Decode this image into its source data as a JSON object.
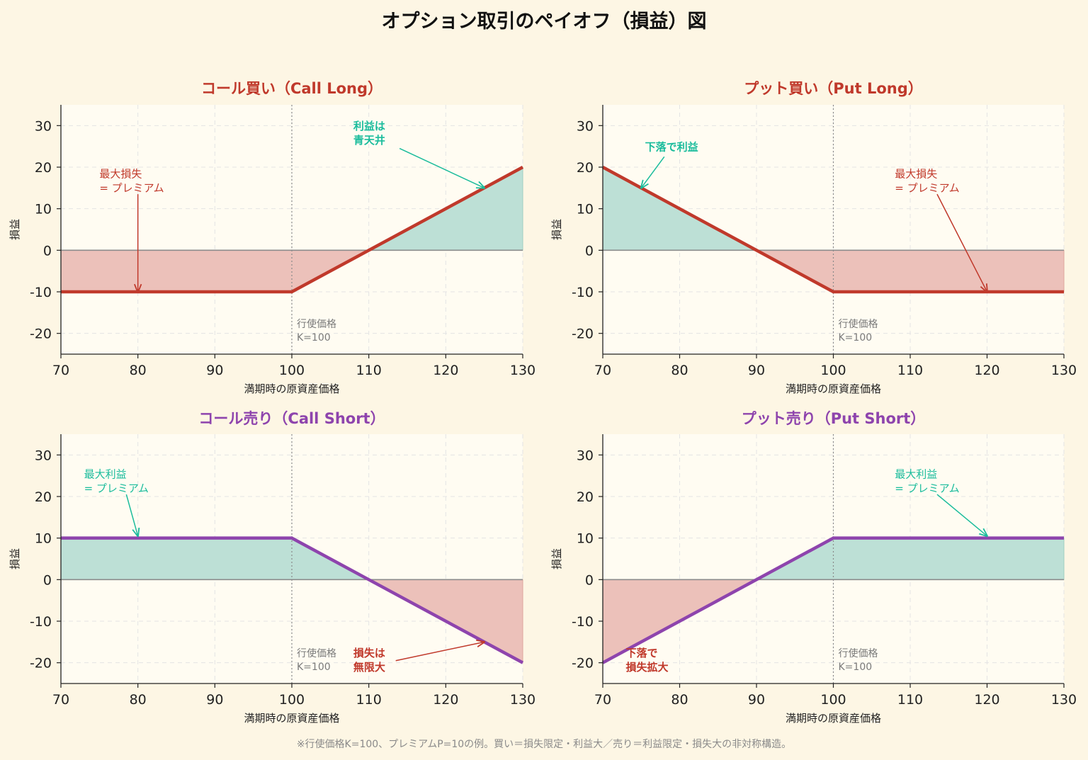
{
  "title": "オプション取引のペイオフ（損益）図",
  "footnote": "※行使価格K=100、プレミアムP=10の例。買い＝損失限定・利益大／売り＝利益限定・損失大の非対称構造。",
  "colors": {
    "background": "#fdf6e4",
    "plot_bg": "#fffcf2",
    "call_long_line": "#c0392b",
    "short_line": "#8e44ad",
    "profit_fill": "#bde0d6",
    "loss_fill": "#ecc1ba",
    "profit_text": "#1abc9c",
    "loss_text": "#c0392b",
    "grid": "#e4e4e4"
  },
  "chart_data": [
    {
      "id": "call-long",
      "type": "line",
      "title": "コール買い（Call Long）",
      "title_color": "#c0392b",
      "line_color": "#c0392b",
      "xlabel": "満期時の原資産価格",
      "ylabel": "損益",
      "xlim": [
        70,
        130
      ],
      "ylim": [
        -25,
        35
      ],
      "xticks": [
        70,
        80,
        90,
        100,
        110,
        120,
        130
      ],
      "yticks": [
        -20,
        -10,
        0,
        10,
        20,
        30
      ],
      "grid": true,
      "strike": 100,
      "strike_label": [
        "行使価格",
        "K=100"
      ],
      "x": [
        70,
        100,
        130
      ],
      "y": [
        -10,
        -10,
        20
      ],
      "annotations": [
        {
          "lines": [
            "最大損失",
            "= プレミアム"
          ],
          "color": "#c0392b",
          "bold": false,
          "text_x": 75,
          "text_y": 17.5,
          "arrow_from": [
            80,
            13.5
          ],
          "arrow_to": [
            80,
            -10
          ]
        },
        {
          "lines": [
            "利益は",
            "青天井"
          ],
          "color": "#1abc9c",
          "bold": true,
          "text_x": 108,
          "text_y": 29,
          "arrow_from": [
            114,
            24.5
          ],
          "arrow_to": [
            125,
            15
          ]
        }
      ]
    },
    {
      "id": "put-long",
      "type": "line",
      "title": "プット買い（Put Long）",
      "title_color": "#c0392b",
      "line_color": "#c0392b",
      "xlabel": "満期時の原資産価格",
      "ylabel": "損益",
      "xlim": [
        70,
        130
      ],
      "ylim": [
        -25,
        35
      ],
      "xticks": [
        70,
        80,
        90,
        100,
        110,
        120,
        130
      ],
      "yticks": [
        -20,
        -10,
        0,
        10,
        20,
        30
      ],
      "grid": true,
      "strike": 100,
      "strike_label": [
        "行使価格",
        "K=100"
      ],
      "x": [
        70,
        100,
        130
      ],
      "y": [
        20,
        -10,
        -10
      ],
      "annotations": [
        {
          "lines": [
            "下落で利益"
          ],
          "color": "#1abc9c",
          "bold": true,
          "text_x": 75.5,
          "text_y": 24,
          "arrow_from": [
            78,
            22.5
          ],
          "arrow_to": [
            75,
            15
          ]
        },
        {
          "lines": [
            "最大損失",
            "= プレミアム"
          ],
          "color": "#c0392b",
          "bold": false,
          "text_x": 108,
          "text_y": 17.5,
          "arrow_from": [
            113.5,
            13.5
          ],
          "arrow_to": [
            120,
            -10
          ]
        }
      ]
    },
    {
      "id": "call-short",
      "type": "line",
      "title": "コール売り（Call Short）",
      "title_color": "#8e44ad",
      "line_color": "#8e44ad",
      "xlabel": "満期時の原資産価格",
      "ylabel": "損益",
      "xlim": [
        70,
        130
      ],
      "ylim": [
        -25,
        35
      ],
      "xticks": [
        70,
        80,
        90,
        100,
        110,
        120,
        130
      ],
      "yticks": [
        -20,
        -10,
        0,
        10,
        20,
        30
      ],
      "grid": true,
      "strike": 100,
      "strike_label": [
        "行使価格",
        "K=100"
      ],
      "x": [
        70,
        100,
        130
      ],
      "y": [
        10,
        10,
        -20
      ],
      "annotations": [
        {
          "lines": [
            "最大利益",
            "= プレミアム"
          ],
          "color": "#1abc9c",
          "bold": false,
          "text_x": 73,
          "text_y": 24.5,
          "arrow_from": [
            78.5,
            20.5
          ],
          "arrow_to": [
            80,
            10.5
          ]
        },
        {
          "lines": [
            "損失は",
            "無限大"
          ],
          "color": "#c0392b",
          "bold": true,
          "text_x": 108,
          "text_y": -18.5,
          "arrow_from": [
            113.5,
            -19.5
          ],
          "arrow_to": [
            125,
            -15
          ]
        }
      ]
    },
    {
      "id": "put-short",
      "type": "line",
      "title": "プット売り（Put Short）",
      "title_color": "#8e44ad",
      "line_color": "#8e44ad",
      "xlabel": "満期時の原資産価格",
      "ylabel": "損益",
      "xlim": [
        70,
        130
      ],
      "ylim": [
        -25,
        35
      ],
      "xticks": [
        70,
        80,
        90,
        100,
        110,
        120,
        130
      ],
      "yticks": [
        -20,
        -10,
        0,
        10,
        20,
        30
      ],
      "grid": true,
      "strike": 100,
      "strike_label": [
        "行使価格",
        "K=100"
      ],
      "x": [
        70,
        100,
        130
      ],
      "y": [
        -20,
        10,
        10
      ],
      "annotations": [
        {
          "lines": [
            "最大利益",
            "= プレミアム"
          ],
          "color": "#1abc9c",
          "bold": false,
          "text_x": 108,
          "text_y": 24.5,
          "arrow_from": [
            113.5,
            20.5
          ],
          "arrow_to": [
            120,
            10.5
          ]
        },
        {
          "lines": [
            "下落で",
            "損失拡大"
          ],
          "color": "#c0392b",
          "bold": true,
          "text_x": 73,
          "text_y": -18.5,
          "arrow_from": null,
          "arrow_to": null
        }
      ]
    }
  ]
}
